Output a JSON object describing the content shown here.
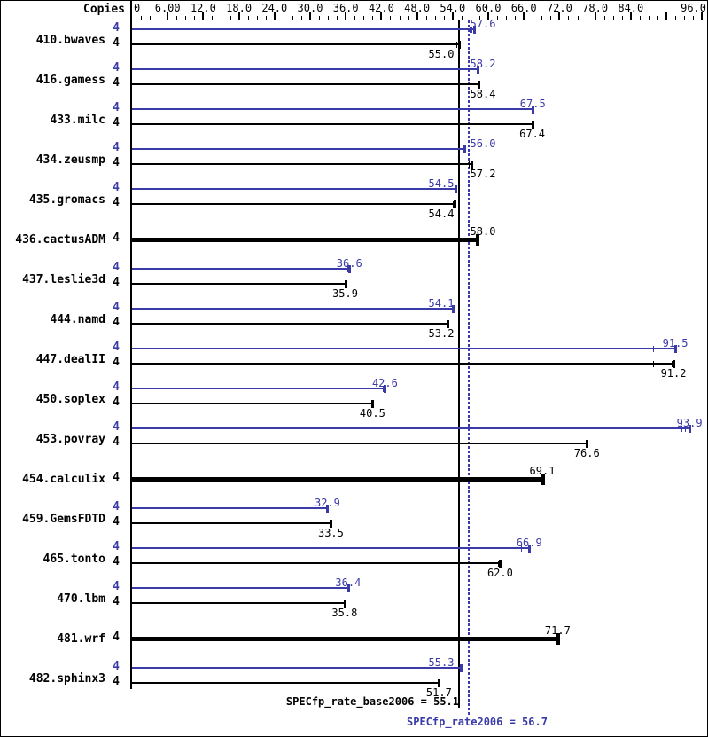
{
  "header": {
    "copies_label": "Copies"
  },
  "axis": {
    "min": 0,
    "max": 96,
    "major_tick_step": 6,
    "minor_tick_step": 1.5,
    "tick_labels": [
      {
        "v": 0,
        "label": "0"
      },
      {
        "v": 6,
        "label": "6.00"
      },
      {
        "v": 12,
        "label": "12.0"
      },
      {
        "v": 18,
        "label": "18.0"
      },
      {
        "v": 24,
        "label": "24.0"
      },
      {
        "v": 30,
        "label": "30.0"
      },
      {
        "v": 36,
        "label": "36.0"
      },
      {
        "v": 42,
        "label": "42.0"
      },
      {
        "v": 48,
        "label": "48.0"
      },
      {
        "v": 54,
        "label": "54.0"
      },
      {
        "v": 60,
        "label": "60.0"
      },
      {
        "v": 66,
        "label": "66.0"
      },
      {
        "v": 72,
        "label": "72.0"
      },
      {
        "v": 78,
        "label": "78.0"
      },
      {
        "v": 84,
        "label": "84.0"
      },
      {
        "v": 96,
        "label": "96.0"
      }
    ]
  },
  "colors": {
    "peak_blue": "#3a3aa8",
    "base_black": "#000000",
    "background": "#ffffff"
  },
  "chart_data": {
    "type": "bar",
    "orientation": "horizontal",
    "xlim": [
      0,
      96
    ],
    "legend": "blue bars = peak (SPECfp_rate2006), black bars = base (SPECfp_rate_base2006); thick black bar = base only",
    "copies_per_run": 4,
    "benchmarks": [
      {
        "name": "410.bwaves",
        "copies": 4,
        "peak": 57.6,
        "base": 55.0,
        "peak_marks": [
          56.9,
          57.2
        ],
        "base_marks": [
          54.4,
          54.7
        ]
      },
      {
        "name": "416.gamess",
        "copies": 4,
        "peak": 58.2,
        "base": 58.4,
        "peak_marks": [],
        "base_marks": []
      },
      {
        "name": "433.milc",
        "copies": 4,
        "peak": 67.5,
        "base": 67.4,
        "peak_marks": [],
        "base_marks": []
      },
      {
        "name": "434.zeusmp",
        "copies": 4,
        "peak": 56.0,
        "base": 57.2,
        "peak_marks": [
          54.3
        ],
        "base_marks": [
          56.7,
          57.0
        ]
      },
      {
        "name": "435.gromacs",
        "copies": 4,
        "peak": 54.5,
        "base": 54.4,
        "peak_marks": [],
        "base_marks": [
          54.0,
          54.2
        ]
      },
      {
        "name": "436.cactusADM",
        "copies": 4,
        "peak": null,
        "base": 58.0,
        "peak_marks": [],
        "base_marks": []
      },
      {
        "name": "437.leslie3d",
        "copies": 4,
        "peak": 36.6,
        "base": 35.9,
        "peak_marks": [
          36.3
        ],
        "base_marks": []
      },
      {
        "name": "444.namd",
        "copies": 4,
        "peak": 54.1,
        "base": 53.2,
        "peak_marks": [],
        "base_marks": []
      },
      {
        "name": "447.dealII",
        "copies": 4,
        "peak": 91.5,
        "base": 91.2,
        "peak_marks": [
          87.7,
          91.1
        ],
        "base_marks": [
          87.7,
          90.9
        ]
      },
      {
        "name": "450.soplex",
        "copies": 4,
        "peak": 42.6,
        "base": 40.5,
        "peak_marks": [
          42.3
        ],
        "base_marks": []
      },
      {
        "name": "453.povray",
        "copies": 4,
        "peak": 93.9,
        "base": 76.6,
        "peak_marks": [
          92.6,
          93.2
        ],
        "base_marks": []
      },
      {
        "name": "454.calculix",
        "copies": 4,
        "peak": null,
        "base": 69.1,
        "peak_marks": [],
        "base_marks": []
      },
      {
        "name": "459.GemsFDTD",
        "copies": 4,
        "peak": 32.9,
        "base": 33.5,
        "peak_marks": [],
        "base_marks": []
      },
      {
        "name": "465.tonto",
        "copies": 4,
        "peak": 66.9,
        "base": 62.0,
        "peak_marks": [
          65.5
        ],
        "base_marks": [
          61.6
        ]
      },
      {
        "name": "470.lbm",
        "copies": 4,
        "peak": 36.4,
        "base": 35.8,
        "peak_marks": [],
        "base_marks": []
      },
      {
        "name": "481.wrf",
        "copies": 4,
        "peak": null,
        "base": 71.7,
        "peak_marks": [],
        "base_marks": [
          71.4
        ]
      },
      {
        "name": "482.sphinx3",
        "copies": 4,
        "peak": 55.3,
        "base": 51.7,
        "peak_marks": [],
        "base_marks": []
      }
    ],
    "means": [
      {
        "name": "SPECfp_rate_base2006",
        "value": 55.1,
        "label": "SPECfp_rate_base2006 = 55.1",
        "line_style": "solid",
        "color": "black"
      },
      {
        "name": "SPECfp_rate2006",
        "value": 56.7,
        "label": "SPECfp_rate2006 = 56.7",
        "line_style": "dotted",
        "color": "blue"
      }
    ]
  }
}
